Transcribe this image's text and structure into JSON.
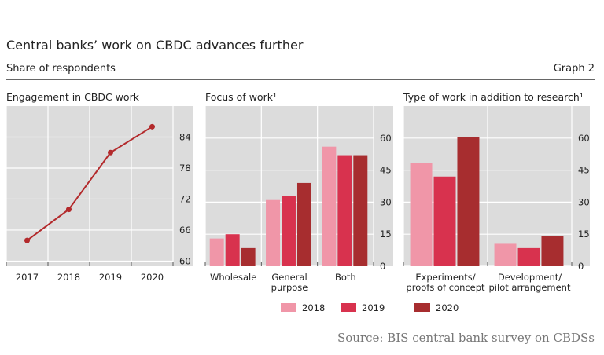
{
  "header": {
    "title": "Central banks’ work on CBDC advances further",
    "subtitle": "Share of respondents",
    "graph_label": "Graph 2"
  },
  "source": "Source: BIS central bank survey on CBDSs",
  "colors": {
    "2018": "#f096a8",
    "2019": "#d8324e",
    "2020": "#a72d2f",
    "line": "#b32a2c",
    "panel": "#dcdcdc"
  },
  "legend": [
    {
      "label": "2018",
      "key": "2018"
    },
    {
      "label": "2019",
      "key": "2019"
    },
    {
      "label": "2020",
      "key": "2020"
    }
  ],
  "chart_data": [
    {
      "type": "line",
      "title": "Engagement in CBDC work",
      "categories": [
        "2017",
        "2018",
        "2019",
        "2020"
      ],
      "values": [
        64,
        70,
        81,
        86
      ],
      "yticks": [
        60,
        66,
        72,
        78,
        84
      ],
      "ylim": [
        59,
        90
      ],
      "grid": true,
      "axis_side": "right"
    },
    {
      "type": "bar",
      "title": "Focus of work¹",
      "categories": [
        [
          "Wholesale"
        ],
        [
          "General",
          "purpose"
        ],
        [
          "Both"
        ]
      ],
      "series": [
        {
          "name": "2018",
          "values": [
            13,
            31,
            56
          ]
        },
        {
          "name": "2019",
          "values": [
            15,
            33,
            52
          ]
        },
        {
          "name": "2020",
          "values": [
            8.5,
            39,
            52
          ]
        }
      ],
      "yticks": [
        0,
        15,
        30,
        45,
        60
      ],
      "ylim": [
        0,
        75
      ],
      "grid": true,
      "axis_side": "right"
    },
    {
      "type": "bar",
      "title": "Type of work in addition to research¹",
      "categories": [
        [
          "Experiments/",
          "proofs of concept"
        ],
        [
          "Development/",
          "pilot arrangement"
        ]
      ],
      "series": [
        {
          "name": "2018",
          "values": [
            48.5,
            10.5
          ]
        },
        {
          "name": "2019",
          "values": [
            42,
            8.5
          ]
        },
        {
          "name": "2020",
          "values": [
            60.5,
            14
          ]
        }
      ],
      "yticks": [
        0,
        15,
        30,
        45,
        60
      ],
      "ylim": [
        0,
        75
      ],
      "grid": true,
      "axis_side": "right"
    }
  ]
}
